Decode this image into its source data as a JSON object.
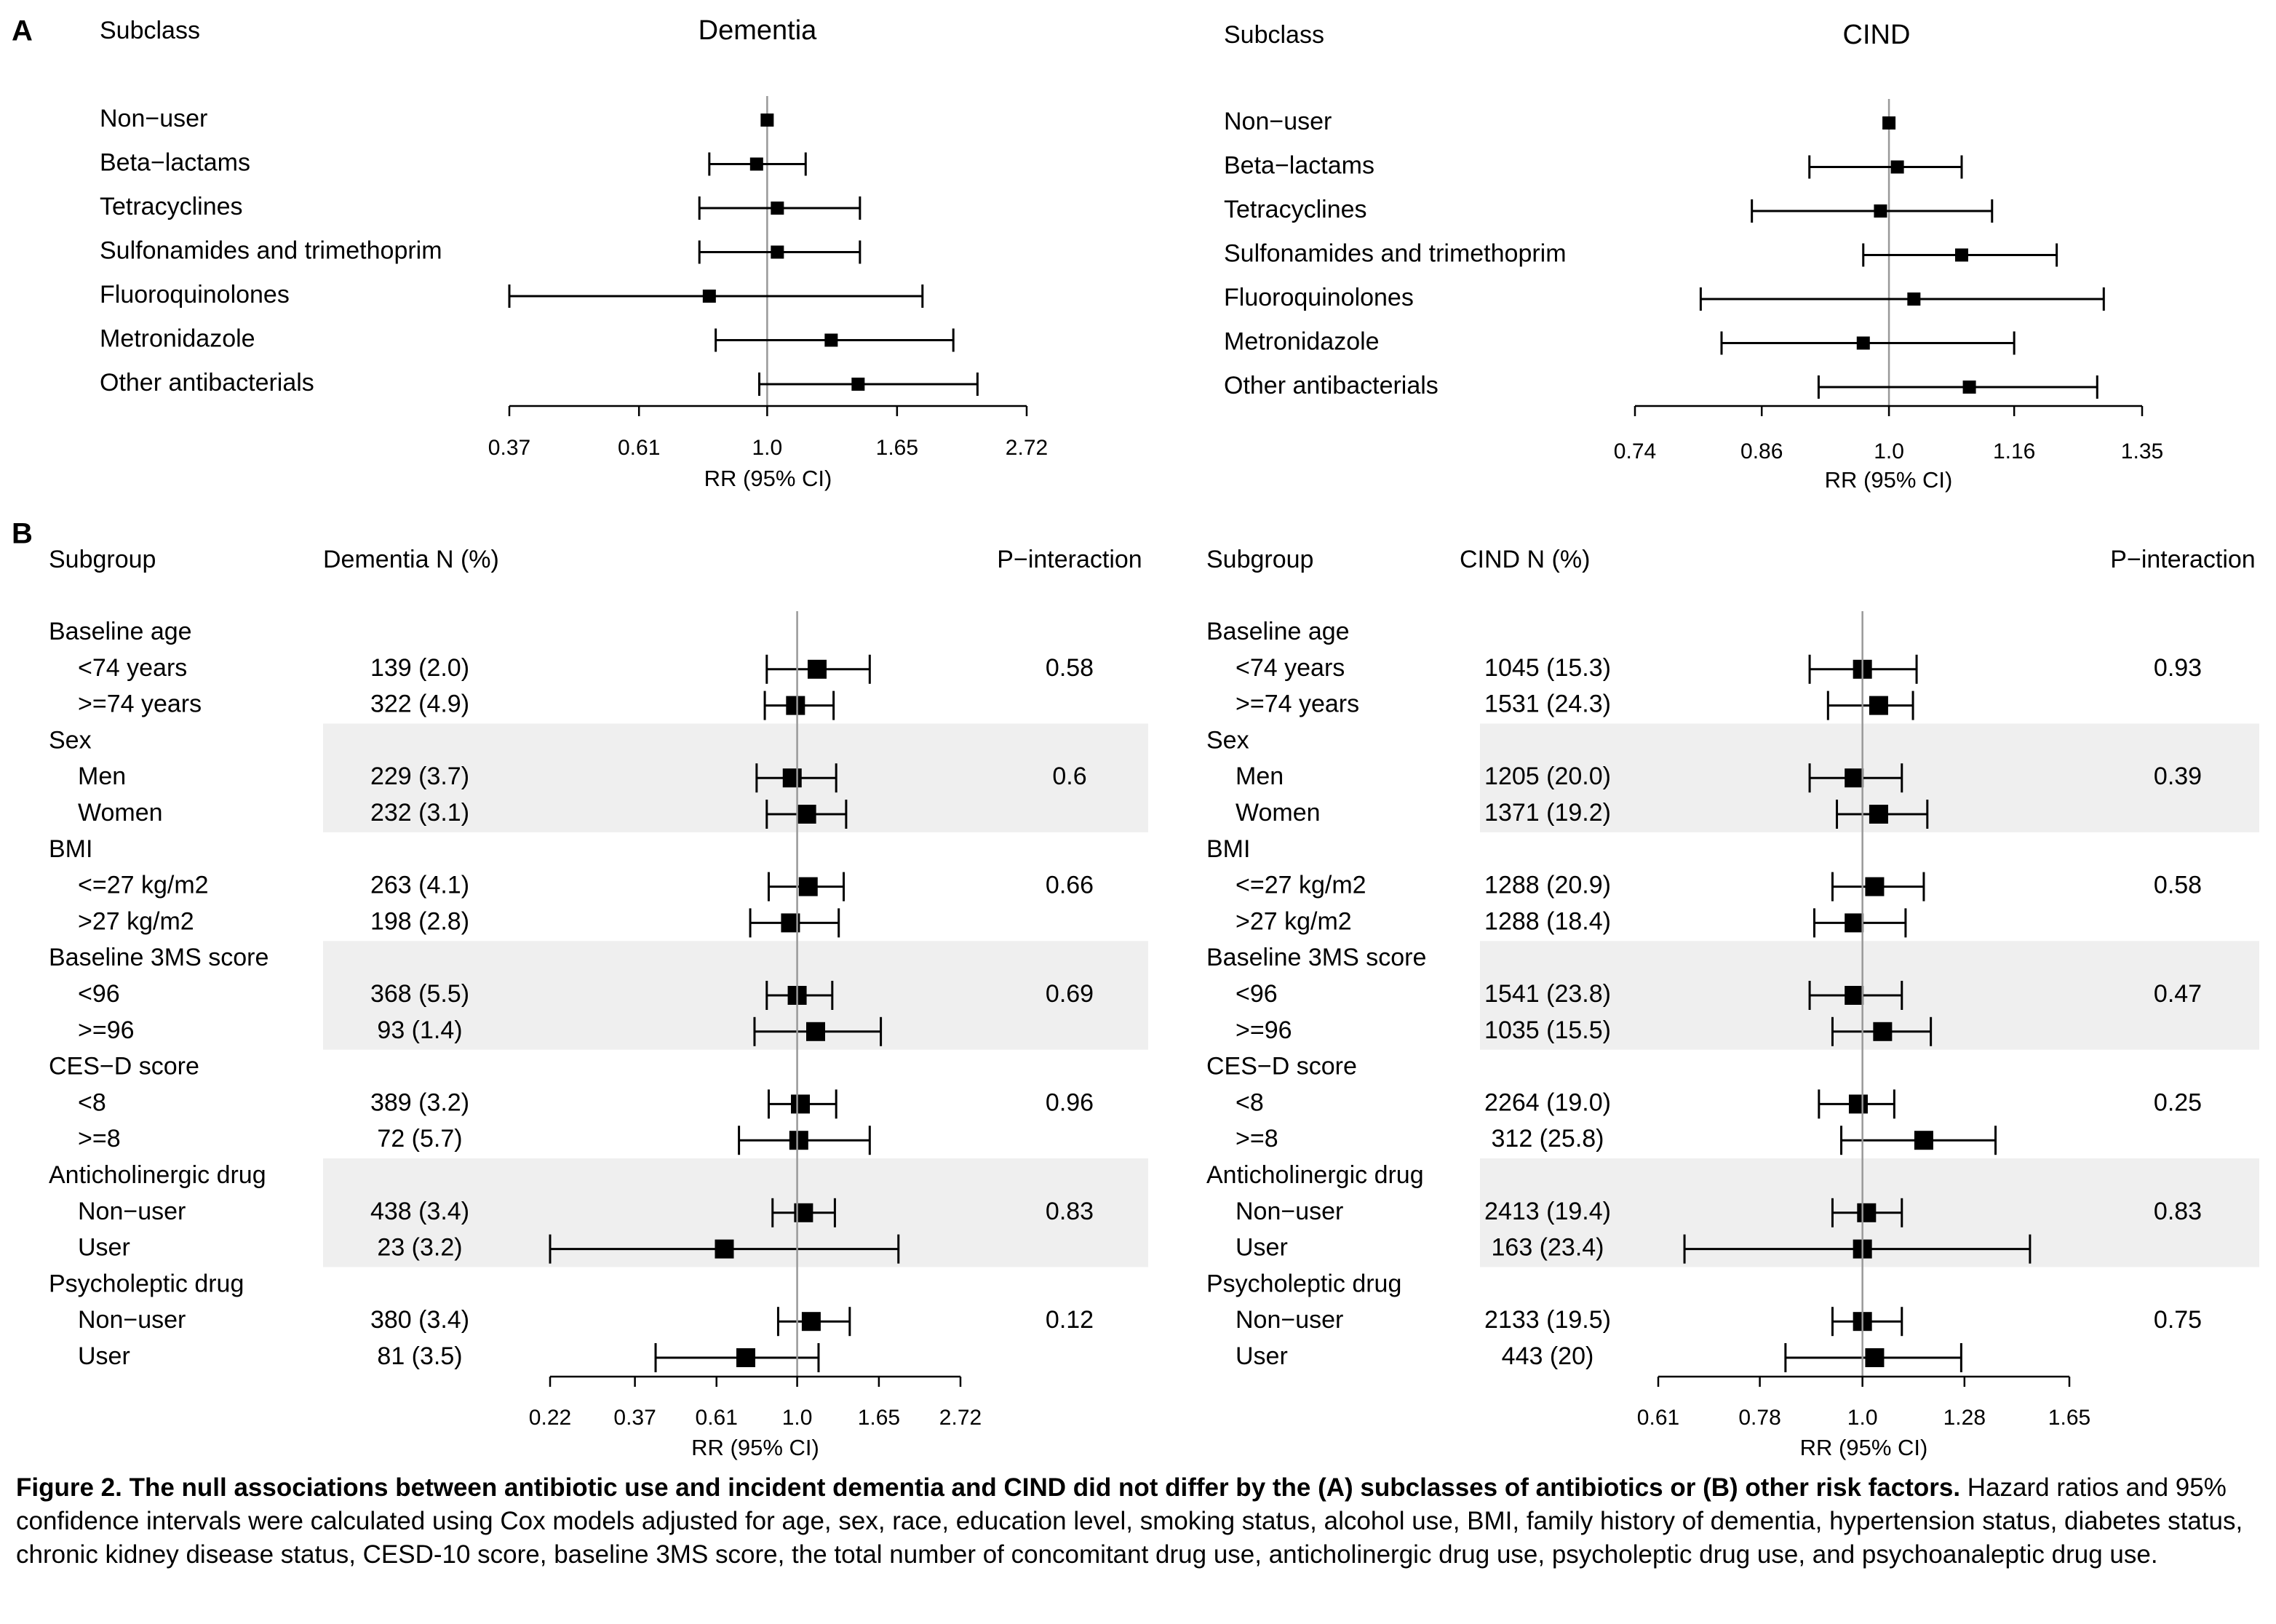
{
  "panel_a_letter": "A",
  "panel_b_letter": "B",
  "caption": {
    "bold": "Figure 2. The null associations between antibiotic use and incident dementia and CIND did not differ by the (A) subclasses of antibiotics or (B) other risk factors.",
    "text": " Hazard ratios and 95% confidence intervals were calculated using Cox models adjusted for age, sex, race, education level, smoking status, alcohol use, BMI, family history of dementia, hypertension status, diabetes status, chronic kidney disease status, CESD-10 score, baseline 3MS score, the total number of concomitant drug use, anticholinergic drug use, psycholeptic drug use, and psychoanaleptic drug use."
  },
  "chart_data": [
    {
      "id": "A-dementia",
      "type": "forest",
      "title": "Dementia",
      "label_header": "Subclass",
      "xlabel": "RR (95% CI)",
      "scale": "log",
      "xlim": [
        0.37,
        2.72
      ],
      "reference": 1.0,
      "ticks": [
        "0.37",
        "0.61",
        "1.0",
        "1.65",
        "2.72"
      ],
      "rows": [
        {
          "label": "Non−user",
          "est": 1.0
        },
        {
          "label": "Beta−lactams",
          "est": 0.96,
          "lo": 0.8,
          "hi": 1.16
        },
        {
          "label": "Tetracyclines",
          "est": 1.04,
          "lo": 0.77,
          "hi": 1.43
        },
        {
          "label": "Sulfonamides and trimethoprim",
          "est": 1.04,
          "lo": 0.77,
          "hi": 1.43
        },
        {
          "label": "Fluoroquinolones",
          "est": 0.8,
          "lo": 0.37,
          "hi": 1.82
        },
        {
          "label": "Metronidazole",
          "est": 1.28,
          "lo": 0.82,
          "hi": 2.05
        },
        {
          "label": "Other antibacterials",
          "est": 1.42,
          "lo": 0.97,
          "hi": 2.25
        }
      ]
    },
    {
      "id": "A-cind",
      "type": "forest",
      "title": "CIND",
      "label_header": "Subclass",
      "xlabel": "RR (95% CI)",
      "scale": "log",
      "xlim": [
        0.74,
        1.35
      ],
      "reference": 1.0,
      "ticks": [
        "0.74",
        "0.86",
        "1.0",
        "1.16",
        "1.35"
      ],
      "rows": [
        {
          "label": "Non−user",
          "est": 1.0
        },
        {
          "label": "Beta−lactams",
          "est": 1.01,
          "lo": 0.91,
          "hi": 1.09
        },
        {
          "label": "Tetracyclines",
          "est": 0.99,
          "lo": 0.85,
          "hi": 1.13
        },
        {
          "label": "Sulfonamides and trimethoprim",
          "est": 1.09,
          "lo": 0.97,
          "hi": 1.22
        },
        {
          "label": "Fluoroquinolones",
          "est": 1.03,
          "lo": 0.8,
          "hi": 1.29
        },
        {
          "label": "Metronidazole",
          "est": 0.97,
          "lo": 0.82,
          "hi": 1.16
        },
        {
          "label": "Other antibacterials",
          "est": 1.1,
          "lo": 0.92,
          "hi": 1.28
        }
      ]
    },
    {
      "id": "B-dementia",
      "type": "forest",
      "label_header": "Subgroup",
      "n_header": "Dementia N (%)",
      "p_header": "P−interaction",
      "xlabel": "RR (95% CI)",
      "scale": "log",
      "xlim": [
        0.22,
        2.72
      ],
      "reference": 1.0,
      "ticks": [
        "0.22",
        "0.37",
        "0.61",
        "1.0",
        "1.65",
        "2.72"
      ],
      "groups": [
        {
          "name": "Baseline age",
          "p": "0.58",
          "shaded": false,
          "rows": [
            {
              "label": "<74 years",
              "n": "139 (2.0)",
              "est": 1.13,
              "lo": 0.83,
              "hi": 1.56
            },
            {
              "label": ">=74 years",
              "n": "322 (4.9)",
              "est": 0.99,
              "lo": 0.82,
              "hi": 1.25
            }
          ]
        },
        {
          "name": "Sex",
          "p": "0.6",
          "shaded": true,
          "rows": [
            {
              "label": "Men",
              "n": "229 (3.7)",
              "est": 0.97,
              "lo": 0.78,
              "hi": 1.27
            },
            {
              "label": "Women",
              "n": "232 (3.1)",
              "est": 1.06,
              "lo": 0.83,
              "hi": 1.35
            }
          ]
        },
        {
          "name": "BMI",
          "p": "0.66",
          "shaded": false,
          "rows": [
            {
              "label": "<=27 kg/m2",
              "n": "263 (4.1)",
              "est": 1.07,
              "lo": 0.84,
              "hi": 1.33
            },
            {
              "label": ">27 kg/m2",
              "n": "198 (2.8)",
              "est": 0.96,
              "lo": 0.75,
              "hi": 1.29
            }
          ]
        },
        {
          "name": "Baseline 3MS score",
          "p": "0.69",
          "shaded": true,
          "rows": [
            {
              "label": "<96",
              "n": "368 (5.5)",
              "est": 1.0,
              "lo": 0.83,
              "hi": 1.24
            },
            {
              "label": ">=96",
              "n": "93 (1.4)",
              "est": 1.12,
              "lo": 0.77,
              "hi": 1.67
            }
          ]
        },
        {
          "name": "CES−D score",
          "p": "0.96",
          "shaded": false,
          "rows": [
            {
              "label": "<8",
              "n": "389 (3.2)",
              "est": 1.02,
              "lo": 0.84,
              "hi": 1.27
            },
            {
              "label": ">=8",
              "n": "72 (5.7)",
              "est": 1.01,
              "lo": 0.7,
              "hi": 1.56
            }
          ]
        },
        {
          "name": "Anticholinergic drug",
          "p": "0.83",
          "shaded": true,
          "rows": [
            {
              "label": "Non−user",
              "n": "438 (3.4)",
              "est": 1.04,
              "lo": 0.86,
              "hi": 1.26
            },
            {
              "label": "User",
              "n": "23 (3.2)",
              "est": 0.64,
              "lo": 0.22,
              "hi": 1.86
            }
          ]
        },
        {
          "name": "Psycholeptic drug",
          "p": "0.12",
          "shaded": false,
          "rows": [
            {
              "label": "Non−user",
              "n": "380 (3.4)",
              "est": 1.09,
              "lo": 0.89,
              "hi": 1.38
            },
            {
              "label": "User",
              "n": "81 (3.5)",
              "est": 0.73,
              "lo": 0.42,
              "hi": 1.14
            }
          ]
        }
      ]
    },
    {
      "id": "B-cind",
      "type": "forest",
      "label_header": "Subgroup",
      "n_header": "CIND N (%)",
      "p_header": "P−interaction",
      "xlabel": "RR (95% CI)",
      "scale": "log",
      "xlim": [
        0.61,
        1.65
      ],
      "reference": 1.0,
      "ticks": [
        "0.61",
        "0.78",
        "1.0",
        "1.28",
        "1.65"
      ],
      "groups": [
        {
          "name": "Baseline age",
          "p": "0.93",
          "shaded": false,
          "rows": [
            {
              "label": "<74 years",
              "n": "1045 (15.3)",
              "est": 1.0,
              "lo": 0.88,
              "hi": 1.14
            },
            {
              "label": ">=74 years",
              "n": "1531 (24.3)",
              "est": 1.04,
              "lo": 0.92,
              "hi": 1.13
            }
          ]
        },
        {
          "name": "Sex",
          "p": "0.39",
          "shaded": true,
          "rows": [
            {
              "label": "Men",
              "n": "1205 (20.0)",
              "est": 0.98,
              "lo": 0.88,
              "hi": 1.1
            },
            {
              "label": "Women",
              "n": "1371 (19.2)",
              "est": 1.04,
              "lo": 0.94,
              "hi": 1.17
            }
          ]
        },
        {
          "name": "BMI",
          "p": "0.58",
          "shaded": false,
          "rows": [
            {
              "label": "<=27 kg/m2",
              "n": "1288 (20.9)",
              "est": 1.03,
              "lo": 0.93,
              "hi": 1.16
            },
            {
              "label": ">27 kg/m2",
              "n": "1288 (18.4)",
              "est": 0.98,
              "lo": 0.89,
              "hi": 1.11
            }
          ]
        },
        {
          "name": "Baseline 3MS score",
          "p": "0.47",
          "shaded": true,
          "rows": [
            {
              "label": "<96",
              "n": "1541 (23.8)",
              "est": 0.98,
              "lo": 0.88,
              "hi": 1.1
            },
            {
              "label": ">=96",
              "n": "1035 (15.5)",
              "est": 1.05,
              "lo": 0.93,
              "hi": 1.18
            }
          ]
        },
        {
          "name": "CES−D score",
          "p": "0.25",
          "shaded": false,
          "rows": [
            {
              "label": "<8",
              "n": "2264 (19.0)",
              "est": 0.99,
              "lo": 0.9,
              "hi": 1.08
            },
            {
              "label": ">=8",
              "n": "312 (25.8)",
              "est": 1.16,
              "lo": 0.95,
              "hi": 1.38
            }
          ]
        },
        {
          "name": "Anticholinergic drug",
          "p": "0.83",
          "shaded": true,
          "rows": [
            {
              "label": "Non−user",
              "n": "2413 (19.4)",
              "est": 1.01,
              "lo": 0.93,
              "hi": 1.1
            },
            {
              "label": "User",
              "n": "163 (23.4)",
              "est": 1.0,
              "lo": 0.65,
              "hi": 1.5
            }
          ]
        },
        {
          "name": "Psycholeptic drug",
          "p": "0.75",
          "shaded": false,
          "rows": [
            {
              "label": "Non−user",
              "n": "2133 (19.5)",
              "est": 1.0,
              "lo": 0.93,
              "hi": 1.1
            },
            {
              "label": "User",
              "n": "443 (20)",
              "est": 1.03,
              "lo": 0.83,
              "hi": 1.27
            }
          ]
        }
      ]
    }
  ]
}
